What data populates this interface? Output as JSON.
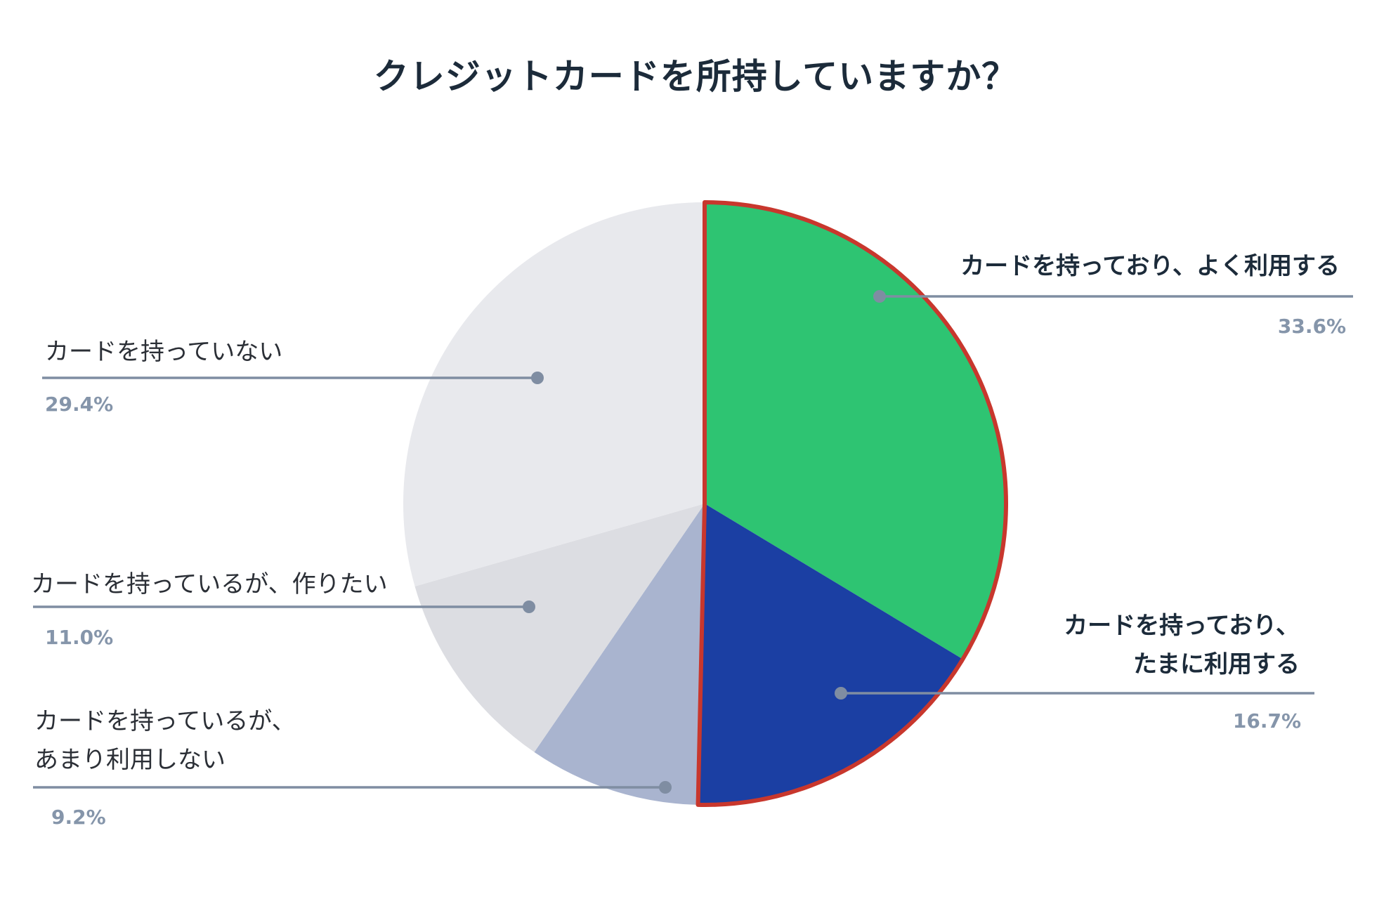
{
  "colors": {
    "background": "#ffffff",
    "title": "#1c2b3a",
    "label_bold": "#1c2b3a",
    "label_regular": "#2b2f36",
    "value_label": "#8595aa",
    "leader": "#7f8da2"
  },
  "chart_data": {
    "type": "pie",
    "title": "クレジットカードを所持していますか？",
    "highlight_color": "#c8372d",
    "slices": [
      {
        "label_lines": [
          "カードを持っており、よく利用する"
        ],
        "value": 33.6,
        "value_label": "33.6%",
        "color": "#2ec472",
        "highlighted": true
      },
      {
        "label_lines": [
          "カードを持っており、",
          "たまに利用する"
        ],
        "value": 16.7,
        "value_label": "16.7%",
        "color": "#1b3fa3",
        "highlighted": true
      },
      {
        "label_lines": [
          "カードを持っているが、",
          "あまり利用しない"
        ],
        "value": 9.2,
        "value_label": "9.2%",
        "color": "#a9b4cf",
        "highlighted": false
      },
      {
        "label_lines": [
          "カードを持っているが、作りたい"
        ],
        "value": 11.0,
        "value_label": "11.0%",
        "color": "#dcdde2",
        "highlighted": false
      },
      {
        "label_lines": [
          "カードを持っていない"
        ],
        "value": 29.4,
        "value_label": "29.4%",
        "color": "#e8e9ed",
        "highlighted": false
      }
    ]
  }
}
